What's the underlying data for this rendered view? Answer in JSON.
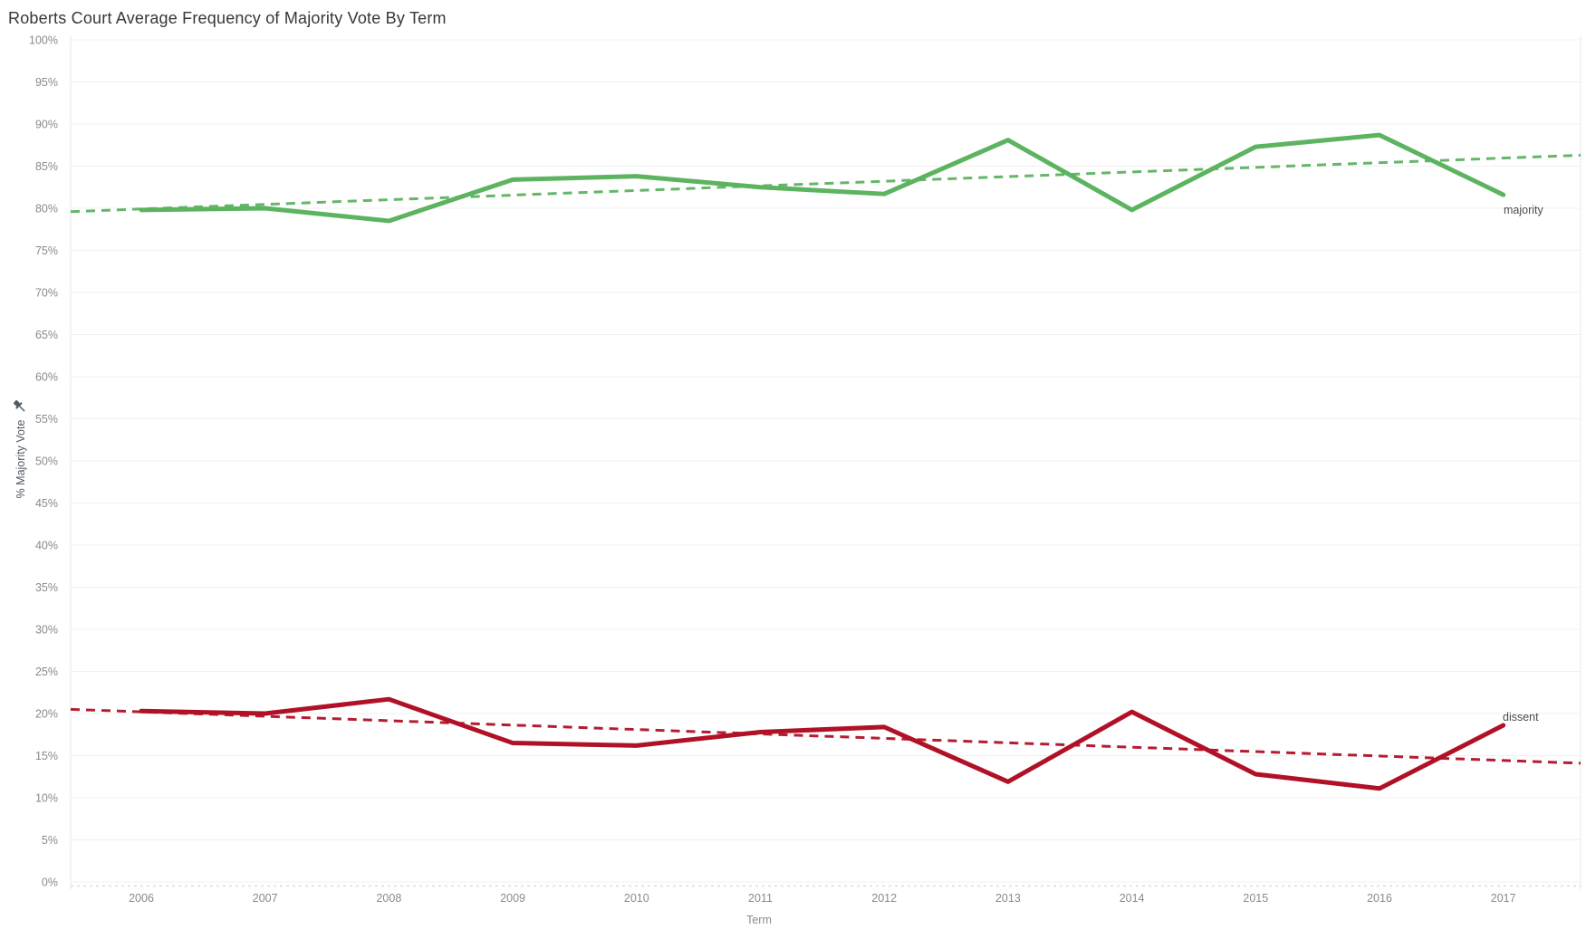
{
  "title": "Roberts Court Average Frequency of Majority Vote By Term",
  "colors": {
    "majority": "#5cb360",
    "dissent": "#b11126",
    "grid": "#f0f0f0",
    "pane_border": "#e7e7e7",
    "axis_line": "#dcdcdc",
    "tick_label": "#8a8a8a",
    "axis_title": "#525a65",
    "title_text": "#373737",
    "series_label": "#4b4b4b"
  },
  "icons": {
    "y_axis_pin": "pushpin"
  },
  "chart_data": {
    "type": "line",
    "title": "Roberts Court Average Frequency of Majority Vote By Term",
    "xlabel": "Term",
    "ylabel": "% Majority Vote",
    "x": [
      "2006",
      "2007",
      "2008",
      "2009",
      "2010",
      "2011",
      "2012",
      "2013",
      "2014",
      "2015",
      "2016",
      "2017"
    ],
    "series": [
      {
        "name": "majority",
        "color": "#5cb360",
        "values": [
          79.8,
          80.0,
          78.5,
          83.4,
          83.8,
          82.5,
          81.7,
          88.1,
          79.8,
          87.3,
          88.7,
          81.6
        ]
      },
      {
        "name": "dissent",
        "color": "#b11126",
        "values": [
          20.3,
          20.0,
          21.7,
          16.5,
          16.2,
          17.8,
          18.4,
          11.9,
          20.2,
          12.8,
          11.1,
          18.6
        ]
      }
    ],
    "trend_lines": [
      {
        "series": "majority",
        "style": "dashed",
        "start_pct": 79.6,
        "end_pct": 86.3
      },
      {
        "series": "dissent",
        "style": "dashed",
        "start_pct": 20.5,
        "end_pct": 14.1
      }
    ],
    "ylim": [
      0,
      100
    ],
    "ytick_step": 5,
    "ytick_labels": [
      "0%",
      "5%",
      "10%",
      "15%",
      "20%",
      "25%",
      "30%",
      "35%",
      "40%",
      "45%",
      "50%",
      "55%",
      "60%",
      "65%",
      "70%",
      "75%",
      "80%",
      "85%",
      "90%",
      "95%",
      "100%"
    ],
    "grid": "horizontal",
    "legend": "inline-end-labels",
    "end_label_majority": "majority",
    "end_label_dissent": "dissent"
  }
}
